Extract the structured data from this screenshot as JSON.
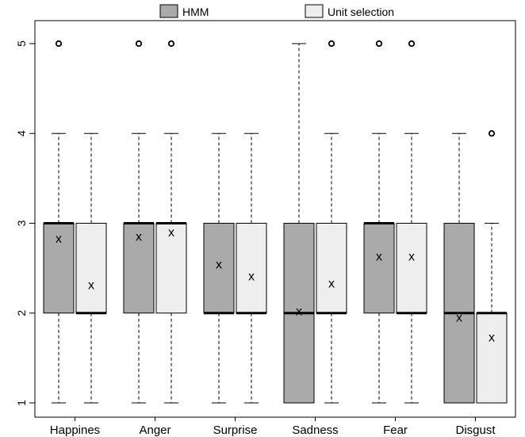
{
  "chart_data": {
    "type": "boxplot",
    "categories": [
      "Happines",
      "Anger",
      "Surprise",
      "Sadness",
      "Fear",
      "Disgust"
    ],
    "ylim": [
      1,
      5
    ],
    "yticks": [
      "1",
      "2",
      "3",
      "4",
      "5"
    ],
    "legend": {
      "position": "top",
      "items": [
        "HMM",
        "Unit selection"
      ]
    },
    "colors": {
      "HMM": "#aaaaaa",
      "Unit selection": "#eeeeee"
    },
    "mean_marker": "x",
    "series": [
      {
        "name": "HMM",
        "boxes": [
          {
            "whisker_low": 1,
            "q1": 2,
            "median": 3,
            "q3": 3,
            "whisker_high": 4,
            "mean": 2.83,
            "outliers": [
              5
            ]
          },
          {
            "whisker_low": 1,
            "q1": 2,
            "median": 3,
            "q3": 3,
            "whisker_high": 4,
            "mean": 2.85,
            "outliers": [
              5
            ]
          },
          {
            "whisker_low": 1,
            "q1": 2,
            "median": 2,
            "q3": 3,
            "whisker_high": 4,
            "mean": 2.54,
            "outliers": []
          },
          {
            "whisker_low": 1,
            "q1": 1,
            "median": 2,
            "q3": 3,
            "whisker_high": 5,
            "mean": 2.02,
            "outliers": []
          },
          {
            "whisker_low": 1,
            "q1": 2,
            "median": 3,
            "q3": 3,
            "whisker_high": 4,
            "mean": 2.63,
            "outliers": [
              5
            ]
          },
          {
            "whisker_low": 1,
            "q1": 1,
            "median": 2,
            "q3": 3,
            "whisker_high": 4,
            "mean": 1.95,
            "outliers": []
          }
        ]
      },
      {
        "name": "Unit selection",
        "boxes": [
          {
            "whisker_low": 1,
            "q1": 2,
            "median": 2,
            "q3": 3,
            "whisker_high": 4,
            "mean": 2.31,
            "outliers": []
          },
          {
            "whisker_low": 1,
            "q1": 2,
            "median": 3,
            "q3": 3,
            "whisker_high": 4,
            "mean": 2.9,
            "outliers": [
              5
            ]
          },
          {
            "whisker_low": 1,
            "q1": 2,
            "median": 2,
            "q3": 3,
            "whisker_high": 4,
            "mean": 2.41,
            "outliers": []
          },
          {
            "whisker_low": 1,
            "q1": 2,
            "median": 2,
            "q3": 3,
            "whisker_high": 4,
            "mean": 2.33,
            "outliers": [
              5
            ]
          },
          {
            "whisker_low": 1,
            "q1": 2,
            "median": 2,
            "q3": 3,
            "whisker_high": 4,
            "mean": 2.63,
            "outliers": [
              5
            ]
          },
          {
            "whisker_low": 1,
            "q1": 1,
            "median": 2,
            "q3": 2,
            "whisker_high": 3,
            "mean": 1.73,
            "outliers": [
              4
            ]
          }
        ]
      }
    ]
  }
}
